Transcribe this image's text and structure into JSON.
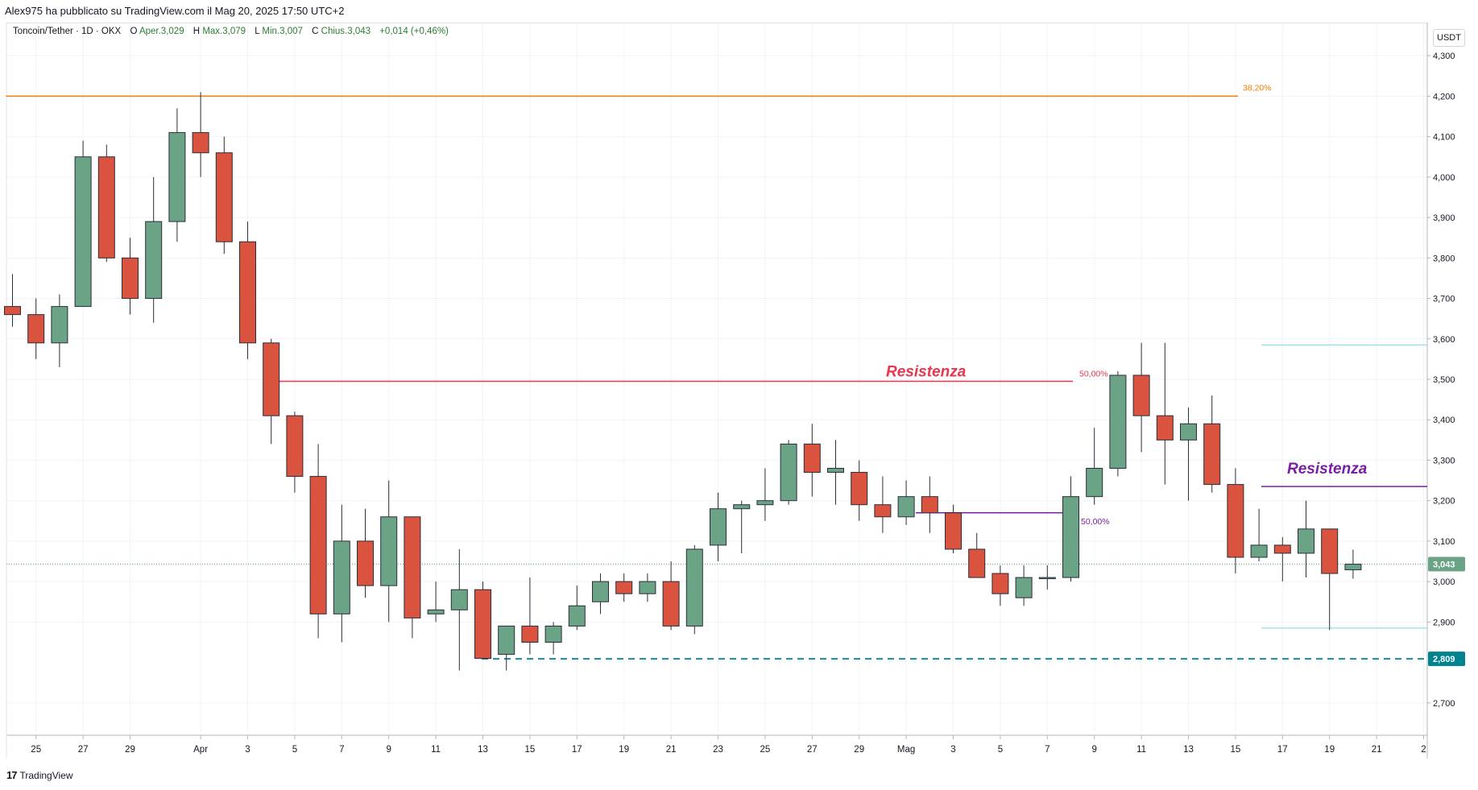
{
  "header": {
    "published_by": "Alex975 ha pubblicato su TradingView.com il Mag 20, 2025 17:50 UTC+2"
  },
  "legend": {
    "symbol": "Toncoin/Tether · 1D · OKX",
    "open_label": "O",
    "open": "Aper.3,029",
    "high_label": "H",
    "high": "Max.3,079",
    "low_label": "L",
    "low": "Min.3,007",
    "close_label": "C",
    "close": "Chius.3,043",
    "change": "+0,014 (+0,46%)"
  },
  "axis": {
    "unit_button": "USDT"
  },
  "footer": {
    "brand": "TradingView",
    "logo_icon": "tradingview-logo-icon"
  },
  "colors": {
    "up": "#6ba386",
    "down": "#d9533f",
    "orange": "#f57c00",
    "red_line": "#e8364f",
    "purple": "#7b1fa2",
    "teal": "#00838f",
    "cyan": "#80deea",
    "grid": "#f0f3fa"
  },
  "chart_data": {
    "type": "candlestick",
    "ylim": [
      2.63,
      4.38
    ],
    "yticks": [
      {
        "value": 4.3,
        "label": "4,300"
      },
      {
        "value": 4.2,
        "label": "4,200"
      },
      {
        "value": 4.1,
        "label": "4,100"
      },
      {
        "value": 4.0,
        "label": "4,000"
      },
      {
        "value": 3.9,
        "label": "3,900"
      },
      {
        "value": 3.8,
        "label": "3,800"
      },
      {
        "value": 3.7,
        "label": "3,700"
      },
      {
        "value": 3.6,
        "label": "3,600"
      },
      {
        "value": 3.5,
        "label": "3,500"
      },
      {
        "value": 3.4,
        "label": "3,400"
      },
      {
        "value": 3.3,
        "label": "3,300"
      },
      {
        "value": 3.2,
        "label": "3,200"
      },
      {
        "value": 3.1,
        "label": "3,100"
      },
      {
        "value": 3.0,
        "label": "3,000"
      },
      {
        "value": 2.9,
        "label": "2,900"
      },
      {
        "value": 2.7,
        "label": "2,700"
      }
    ],
    "xticks": [
      {
        "i": 1,
        "label": "25"
      },
      {
        "i": 3,
        "label": "27"
      },
      {
        "i": 5,
        "label": "29"
      },
      {
        "i": 8,
        "label": "Apr"
      },
      {
        "i": 10,
        "label": "3"
      },
      {
        "i": 12,
        "label": "5"
      },
      {
        "i": 14,
        "label": "7"
      },
      {
        "i": 16,
        "label": "9"
      },
      {
        "i": 18,
        "label": "11"
      },
      {
        "i": 20,
        "label": "13"
      },
      {
        "i": 22,
        "label": "15"
      },
      {
        "i": 24,
        "label": "17"
      },
      {
        "i": 26,
        "label": "19"
      },
      {
        "i": 28,
        "label": "21"
      },
      {
        "i": 30,
        "label": "23"
      },
      {
        "i": 32,
        "label": "25"
      },
      {
        "i": 34,
        "label": "27"
      },
      {
        "i": 36,
        "label": "29"
      },
      {
        "i": 38,
        "label": "Mag"
      },
      {
        "i": 40,
        "label": "3"
      },
      {
        "i": 42,
        "label": "5"
      },
      {
        "i": 44,
        "label": "7"
      },
      {
        "i": 46,
        "label": "9"
      },
      {
        "i": 48,
        "label": "11"
      },
      {
        "i": 50,
        "label": "13"
      },
      {
        "i": 52,
        "label": "15"
      },
      {
        "i": 54,
        "label": "17"
      },
      {
        "i": 56,
        "label": "19"
      },
      {
        "i": 58,
        "label": "21"
      },
      {
        "i": 60,
        "label": "2"
      }
    ],
    "candles": [
      {
        "o": 3.68,
        "h": 3.76,
        "l": 3.63,
        "c": 3.66
      },
      {
        "o": 3.66,
        "h": 3.7,
        "l": 3.55,
        "c": 3.59
      },
      {
        "o": 3.59,
        "h": 3.71,
        "l": 3.53,
        "c": 3.68
      },
      {
        "o": 3.68,
        "h": 4.09,
        "l": 3.68,
        "c": 4.05
      },
      {
        "o": 4.05,
        "h": 4.08,
        "l": 3.79,
        "c": 3.8
      },
      {
        "o": 3.8,
        "h": 3.85,
        "l": 3.66,
        "c": 3.7
      },
      {
        "o": 3.7,
        "h": 4.0,
        "l": 3.64,
        "c": 3.89
      },
      {
        "o": 3.89,
        "h": 4.17,
        "l": 3.84,
        "c": 4.11
      },
      {
        "o": 4.11,
        "h": 4.21,
        "l": 4.0,
        "c": 4.06
      },
      {
        "o": 4.06,
        "h": 4.1,
        "l": 3.81,
        "c": 3.84
      },
      {
        "o": 3.84,
        "h": 3.89,
        "l": 3.55,
        "c": 3.59
      },
      {
        "o": 3.59,
        "h": 3.6,
        "l": 3.34,
        "c": 3.41
      },
      {
        "o": 3.41,
        "h": 3.42,
        "l": 3.22,
        "c": 3.26
      },
      {
        "o": 3.26,
        "h": 3.34,
        "l": 2.86,
        "c": 2.92
      },
      {
        "o": 2.92,
        "h": 3.19,
        "l": 2.85,
        "c": 3.1
      },
      {
        "o": 3.1,
        "h": 3.18,
        "l": 2.96,
        "c": 2.99
      },
      {
        "o": 2.99,
        "h": 3.25,
        "l": 2.9,
        "c": 3.16
      },
      {
        "o": 3.16,
        "h": 3.16,
        "l": 2.86,
        "c": 2.91
      },
      {
        "o": 2.92,
        "h": 3.0,
        "l": 2.9,
        "c": 2.93
      },
      {
        "o": 2.93,
        "h": 3.08,
        "l": 2.78,
        "c": 2.98
      },
      {
        "o": 2.98,
        "h": 3.0,
        "l": 2.81,
        "c": 2.81
      },
      {
        "o": 2.82,
        "h": 2.89,
        "l": 2.78,
        "c": 2.89
      },
      {
        "o": 2.89,
        "h": 3.01,
        "l": 2.82,
        "c": 2.85
      },
      {
        "o": 2.85,
        "h": 2.9,
        "l": 2.82,
        "c": 2.89
      },
      {
        "o": 2.89,
        "h": 2.99,
        "l": 2.88,
        "c": 2.94
      },
      {
        "o": 2.95,
        "h": 3.02,
        "l": 2.92,
        "c": 3.0
      },
      {
        "o": 3.0,
        "h": 3.02,
        "l": 2.95,
        "c": 2.97
      },
      {
        "o": 2.97,
        "h": 3.02,
        "l": 2.95,
        "c": 3.0
      },
      {
        "o": 3.0,
        "h": 3.05,
        "l": 2.88,
        "c": 2.89
      },
      {
        "o": 2.89,
        "h": 3.09,
        "l": 2.87,
        "c": 3.08
      },
      {
        "o": 3.09,
        "h": 3.22,
        "l": 3.05,
        "c": 3.18
      },
      {
        "o": 3.18,
        "h": 3.2,
        "l": 3.07,
        "c": 3.19
      },
      {
        "o": 3.19,
        "h": 3.28,
        "l": 3.15,
        "c": 3.2
      },
      {
        "o": 3.2,
        "h": 3.35,
        "l": 3.19,
        "c": 3.34
      },
      {
        "o": 3.34,
        "h": 3.39,
        "l": 3.21,
        "c": 3.27
      },
      {
        "o": 3.27,
        "h": 3.35,
        "l": 3.19,
        "c": 3.28
      },
      {
        "o": 3.27,
        "h": 3.3,
        "l": 3.15,
        "c": 3.19
      },
      {
        "o": 3.19,
        "h": 3.26,
        "l": 3.12,
        "c": 3.16
      },
      {
        "o": 3.16,
        "h": 3.25,
        "l": 3.14,
        "c": 3.21
      },
      {
        "o": 3.21,
        "h": 3.26,
        "l": 3.12,
        "c": 3.17
      },
      {
        "o": 3.17,
        "h": 3.19,
        "l": 3.07,
        "c": 3.08
      },
      {
        "o": 3.08,
        "h": 3.12,
        "l": 3.01,
        "c": 3.01
      },
      {
        "o": 3.02,
        "h": 3.04,
        "l": 2.94,
        "c": 2.97
      },
      {
        "o": 2.96,
        "h": 3.04,
        "l": 2.94,
        "c": 3.01
      },
      {
        "o": 3.01,
        "h": 3.04,
        "l": 2.98,
        "c": 3.01
      },
      {
        "o": 3.01,
        "h": 3.26,
        "l": 3.0,
        "c": 3.21
      },
      {
        "o": 3.21,
        "h": 3.38,
        "l": 3.19,
        "c": 3.28
      },
      {
        "o": 3.28,
        "h": 3.52,
        "l": 3.26,
        "c": 3.51
      },
      {
        "o": 3.51,
        "h": 3.59,
        "l": 3.32,
        "c": 3.41
      },
      {
        "o": 3.41,
        "h": 3.59,
        "l": 3.24,
        "c": 3.35
      },
      {
        "o": 3.35,
        "h": 3.43,
        "l": 3.2,
        "c": 3.39
      },
      {
        "o": 3.39,
        "h": 3.46,
        "l": 3.22,
        "c": 3.24
      },
      {
        "o": 3.24,
        "h": 3.28,
        "l": 3.02,
        "c": 3.06
      },
      {
        "o": 3.06,
        "h": 3.18,
        "l": 3.05,
        "c": 3.09
      },
      {
        "o": 3.09,
        "h": 3.11,
        "l": 3.0,
        "c": 3.07
      },
      {
        "o": 3.07,
        "h": 3.2,
        "l": 3.01,
        "c": 3.13
      },
      {
        "o": 3.13,
        "h": 3.13,
        "l": 2.88,
        "c": 3.02
      },
      {
        "o": 3.029,
        "h": 3.079,
        "l": 3.007,
        "c": 3.043
      }
    ],
    "annotations": {
      "fib_382": {
        "value": 4.2,
        "label": "38,20%",
        "i_from": 0,
        "i_to": 52
      },
      "fib_50": {
        "value": 3.495,
        "label": "50,00%",
        "i_from": 11,
        "i_to": 45
      },
      "resistance_red": {
        "label": "Resistenza",
        "value": 3.515,
        "i": 37
      },
      "fib_purple": {
        "value": 3.17,
        "label": "50,00%",
        "i_from": 38,
        "i_to": 45
      },
      "resistance_purple": {
        "label": "Resistenza",
        "line_value": 3.235,
        "label_value": 3.275,
        "i_from": 53,
        "i_to": 61
      },
      "cyan_top": {
        "value": 3.585,
        "i_from": 53,
        "i_to": 61
      },
      "cyan_bottom": {
        "value": 2.885,
        "i_from": 53,
        "i_to": 61
      },
      "support_dashed": {
        "value": 2.809,
        "label": "2,809",
        "i_from": 20,
        "i_to": 61
      },
      "last_price": {
        "value": 3.043,
        "label": "3,043"
      }
    }
  }
}
